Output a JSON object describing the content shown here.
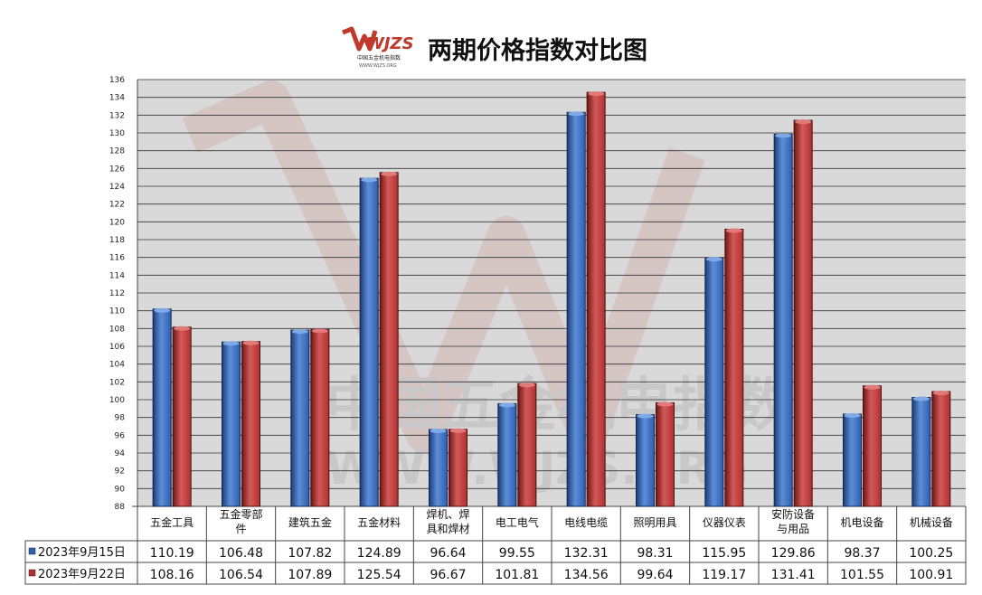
{
  "header": {
    "title": "两期价格指数对比图",
    "logo_text": "WJZS",
    "logo_subtext": "中国五金机电指数",
    "logo_url_text": "WWW.WJZS.ORG"
  },
  "watermark": {
    "line1": "中国五金机电指数",
    "line2": "WWW.WJZS.ORG"
  },
  "colors": {
    "series1": "#2e5fb0",
    "series2": "#b0302f",
    "plot_bg": "#d9d9d9",
    "grid": "#333333"
  },
  "chart_data": {
    "type": "bar",
    "title": "两期价格指数对比图",
    "categories": [
      "五金工具",
      "五金零部件",
      "建筑五金",
      "五金材料",
      "焊机、焊具和焊材",
      "电工电气",
      "电线电缆",
      "照明用具",
      "仪器仪表",
      "安防设备与用品",
      "机电设备",
      "机械设备"
    ],
    "category_lines": [
      [
        "五金工具"
      ],
      [
        "五金零部",
        "件"
      ],
      [
        "建筑五金"
      ],
      [
        "五金材料"
      ],
      [
        "焊机、焊",
        "具和焊材"
      ],
      [
        "电工电气"
      ],
      [
        "电线电缆"
      ],
      [
        "照明用具"
      ],
      [
        "仪器仪表"
      ],
      [
        "安防设备",
        "与用品"
      ],
      [
        "机电设备"
      ],
      [
        "机械设备"
      ]
    ],
    "series": [
      {
        "name": "2023年9月15日",
        "values": [
          110.19,
          106.48,
          107.82,
          124.89,
          96.64,
          99.55,
          132.31,
          98.31,
          115.95,
          129.86,
          98.37,
          100.25
        ]
      },
      {
        "name": "2023年9月22日",
        "values": [
          108.16,
          106.54,
          107.89,
          125.54,
          96.67,
          101.81,
          134.56,
          99.64,
          119.17,
          131.41,
          101.55,
          100.91
        ]
      }
    ],
    "value_strings": [
      [
        "110.19",
        "106.48",
        "107.82",
        "124.89",
        "96.64",
        "99.55",
        "132.31",
        "98.31",
        "115.95",
        "129.86",
        "98.37",
        "100.25"
      ],
      [
        "108.16",
        "106.54",
        "107.89",
        "125.54",
        "96.67",
        "101.81",
        "134.56",
        "99.64",
        "119.17",
        "131.41",
        "101.55",
        "100.91"
      ]
    ],
    "ylim": [
      88,
      136
    ],
    "ytick_step": 2,
    "grid": true,
    "legend": "data-table"
  }
}
